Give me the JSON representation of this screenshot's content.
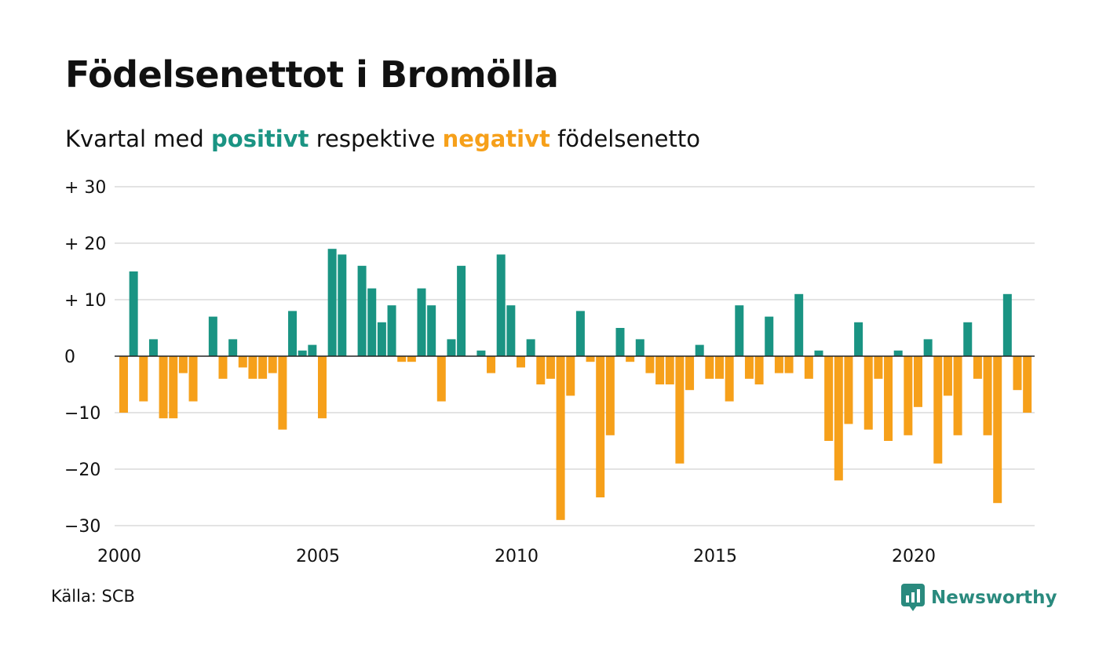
{
  "title": "Födelsenettot i Bromölla",
  "subtitle": {
    "prefix": "Kvartal med",
    "positive_word": "positivt",
    "middle": "respektive",
    "negative_word": "negativt",
    "suffix": "födelsenetto"
  },
  "colors": {
    "positive": "#1a9483",
    "negative": "#f6a01a",
    "grid": "#e3e3e3",
    "zero": "#222222",
    "brand": "#2a8a7e"
  },
  "source": "Källa: SCB",
  "brand": {
    "name": "Newsworthy",
    "icon": "bar-chart-speech-bubble-icon"
  },
  "chart_data": {
    "type": "bar",
    "xlabel": "",
    "ylabel": "",
    "ylim": [
      -30,
      30
    ],
    "y_ticks": [
      30,
      20,
      10,
      0,
      -10,
      -20,
      -30
    ],
    "y_tick_labels": [
      "+ 30",
      "+ 20",
      "+ 10",
      "0",
      "−10",
      "−20",
      "−30"
    ],
    "x_ticks": [
      2000,
      2005,
      2010,
      2015,
      2020
    ],
    "x_tick_labels": [
      "2000",
      "2005",
      "2010",
      "2015",
      "2020"
    ],
    "x_start": 2000,
    "quarters_per_year": 4,
    "grid": true,
    "values": [
      -10,
      15,
      -8,
      3,
      -11,
      -11,
      -3,
      -8,
      0,
      7,
      -4,
      3,
      -2,
      -4,
      -4,
      -3,
      -13,
      8,
      1,
      2,
      -11,
      19,
      18,
      0,
      16,
      12,
      6,
      9,
      -1,
      -1,
      12,
      9,
      -8,
      3,
      16,
      0,
      1,
      -3,
      18,
      9,
      -2,
      3,
      -5,
      -4,
      -29,
      -7,
      8,
      -1,
      -25,
      -14,
      5,
      -1,
      3,
      -3,
      -5,
      -5,
      -19,
      -6,
      2,
      -4,
      -4,
      -8,
      9,
      -4,
      -5,
      7,
      -3,
      -3,
      11,
      -4,
      1,
      -15,
      -22,
      -12,
      6,
      -13,
      -4,
      -15,
      1,
      -14,
      -9,
      3,
      -19,
      -7,
      -14,
      6,
      -4,
      -14,
      -26,
      11,
      -6,
      -10
    ]
  }
}
